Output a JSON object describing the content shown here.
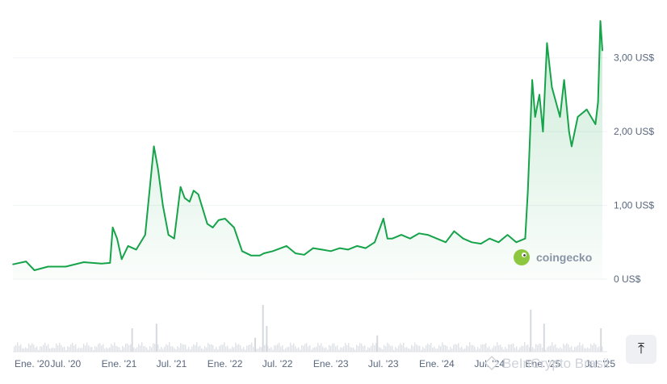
{
  "chart_data": {
    "type": "area",
    "y_ticks": [
      {
        "value": 0,
        "label": "0 US$"
      },
      {
        "value": 1,
        "label": "1,00 US$"
      },
      {
        "value": 2,
        "label": "2,00 US$"
      },
      {
        "value": 3,
        "label": "3,00 US$"
      }
    ],
    "x_ticks": [
      {
        "date": "2020-01-01",
        "label": "Ene. '20"
      },
      {
        "date": "2020-07-01",
        "label": "Jul. '20"
      },
      {
        "date": "2021-01-01",
        "label": "Ene. '21"
      },
      {
        "date": "2021-07-01",
        "label": "Jul. '21"
      },
      {
        "date": "2022-01-01",
        "label": "Ene. '22"
      },
      {
        "date": "2022-07-01",
        "label": "Jul. '22"
      },
      {
        "date": "2023-01-01",
        "label": "Ene. '23"
      },
      {
        "date": "2023-07-01",
        "label": "Jul. '23"
      },
      {
        "date": "2024-01-01",
        "label": "Ene. '24"
      },
      {
        "date": "2024-07-01",
        "label": "Jul. '24"
      },
      {
        "date": "2025-01-01",
        "label": "Ene. '25"
      },
      {
        "date": "2025-07-01",
        "label": "Jul. '25"
      }
    ],
    "ylim": [
      0,
      3.5
    ],
    "grid": true,
    "series": [
      {
        "x": [
          "2020-01-01",
          "2020-02-15",
          "2020-03-15",
          "2020-05-01",
          "2020-07-01",
          "2020-09-01",
          "2020-11-01",
          "2020-12-01",
          "2020-12-10",
          "2020-12-25",
          "2021-01-10",
          "2021-02-01",
          "2021-03-01",
          "2021-04-01",
          "2021-05-01",
          "2021-05-15",
          "2021-06-01",
          "2021-06-20",
          "2021-07-10",
          "2021-08-01",
          "2021-08-15",
          "2021-09-01",
          "2021-09-15",
          "2021-10-01",
          "2021-11-01",
          "2021-11-20",
          "2021-12-10",
          "2022-01-01",
          "2022-02-01",
          "2022-03-01",
          "2022-04-01",
          "2022-05-01",
          "2022-05-15",
          "2022-06-15",
          "2022-08-01",
          "2022-09-01",
          "2022-10-01",
          "2022-11-01",
          "2022-12-01",
          "2023-01-01",
          "2023-02-01",
          "2023-03-01",
          "2023-04-01",
          "2023-05-01",
          "2023-06-01",
          "2023-07-01",
          "2023-07-15",
          "2023-08-01",
          "2023-09-01",
          "2023-10-01",
          "2023-11-01",
          "2023-12-01",
          "2024-01-01",
          "2024-02-01",
          "2024-03-01",
          "2024-04-01",
          "2024-05-01",
          "2024-06-01",
          "2024-07-01",
          "2024-08-01",
          "2024-09-01",
          "2024-10-01",
          "2024-11-01",
          "2024-11-10",
          "2024-11-25",
          "2024-12-05",
          "2024-12-20",
          "2025-01-01",
          "2025-01-15",
          "2025-02-01",
          "2025-03-01",
          "2025-03-15",
          "2025-04-01",
          "2025-04-10",
          "2025-05-01",
          "2025-06-01",
          "2025-07-01",
          "2025-07-10",
          "2025-07-18",
          "2025-07-25"
        ],
        "values": [
          0.2,
          0.24,
          0.12,
          0.17,
          0.17,
          0.23,
          0.21,
          0.22,
          0.7,
          0.55,
          0.27,
          0.45,
          0.4,
          0.6,
          1.8,
          1.5,
          1.0,
          0.6,
          0.55,
          1.25,
          1.1,
          1.05,
          1.2,
          1.15,
          0.75,
          0.7,
          0.8,
          0.82,
          0.7,
          0.38,
          0.32,
          0.32,
          0.35,
          0.38,
          0.45,
          0.35,
          0.33,
          0.42,
          0.4,
          0.38,
          0.42,
          0.4,
          0.45,
          0.42,
          0.5,
          0.82,
          0.55,
          0.55,
          0.6,
          0.55,
          0.62,
          0.6,
          0.55,
          0.5,
          0.65,
          0.55,
          0.5,
          0.48,
          0.55,
          0.5,
          0.6,
          0.5,
          0.55,
          1.2,
          2.7,
          2.2,
          2.5,
          2.0,
          3.2,
          2.6,
          2.2,
          2.7,
          2.0,
          1.8,
          2.2,
          2.3,
          2.1,
          2.4,
          3.5,
          3.1
        ],
        "volume_spikes": [
          {
            "date": "2021-02-15",
            "level": 0.5
          },
          {
            "date": "2021-05-10",
            "level": 0.6
          },
          {
            "date": "2022-04-15",
            "level": 0.3
          },
          {
            "date": "2022-05-12",
            "level": 1.0
          },
          {
            "date": "2022-05-25",
            "level": 0.55
          },
          {
            "date": "2023-06-10",
            "level": 0.35
          },
          {
            "date": "2024-11-20",
            "level": 0.9
          },
          {
            "date": "2025-01-05",
            "level": 0.6
          },
          {
            "date": "2025-07-20",
            "level": 0.5
          }
        ]
      }
    ]
  },
  "watermark": {
    "text": "coingecko"
  },
  "source_credit": "BeInCrypto Brasil",
  "colors": {
    "line": "#16a34a",
    "grid": "#eff2f5",
    "volume": "#dfe2e6"
  },
  "scroll_button": {
    "icon": "arrow-up-to-line-icon"
  }
}
